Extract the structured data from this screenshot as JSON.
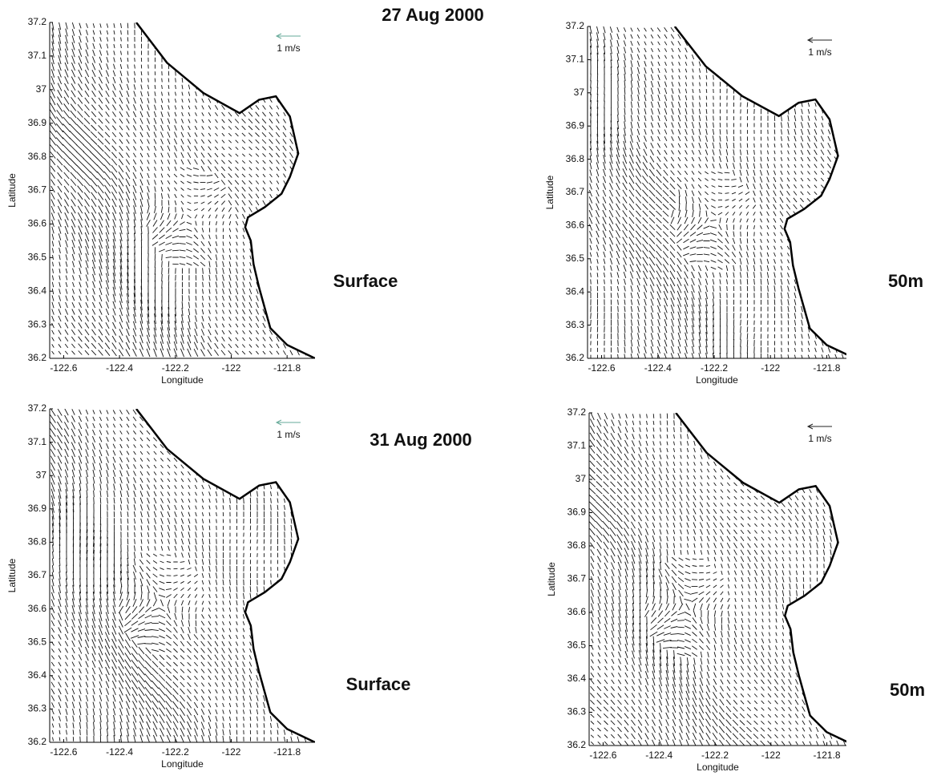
{
  "chart_data": [
    {
      "type": "quiver",
      "title": "27 Aug 2000",
      "depth_label": "Surface",
      "scale_label": "1 m/s",
      "xlabel": "Longitude",
      "ylabel": "Latitude",
      "xlim": [
        -122.65,
        -121.7
      ],
      "ylim": [
        36.2,
        37.2
      ],
      "xticks": [
        -122.6,
        -122.4,
        -122.2,
        -122,
        -121.8
      ],
      "yticks": [
        36.2,
        36.3,
        36.4,
        36.5,
        36.6,
        36.7,
        36.8,
        36.9,
        37,
        37.1,
        37.2
      ]
    },
    {
      "type": "quiver",
      "depth_label": "50m",
      "scale_label": "1 m/s",
      "xlabel": "Longitude",
      "ylabel": "Latitude",
      "xlim": [
        -122.65,
        -121.73
      ],
      "ylim": [
        36.2,
        37.2
      ],
      "xticks": [
        -122.6,
        -122.4,
        -122.2,
        -122,
        -121.8
      ],
      "yticks": [
        36.2,
        36.3,
        36.4,
        36.5,
        36.6,
        36.7,
        36.8,
        36.9,
        37,
        37.1,
        37.2
      ]
    },
    {
      "type": "quiver",
      "title": "31 Aug 2000",
      "depth_label": "Surface",
      "scale_label": "1 m/s",
      "xlabel": "Longitude",
      "ylabel": "Latitude",
      "xlim": [
        -122.65,
        -121.7
      ],
      "ylim": [
        36.2,
        37.2
      ],
      "xticks": [
        -122.6,
        -122.4,
        -122.2,
        -122,
        -121.8
      ],
      "yticks": [
        36.2,
        36.3,
        36.4,
        36.5,
        36.6,
        36.7,
        36.8,
        36.9,
        37,
        37.1,
        37.2
      ]
    },
    {
      "type": "quiver",
      "depth_label": "50m",
      "scale_label": "1 m/s",
      "xlabel": "Longitude",
      "ylabel": "Latitude",
      "xlim": [
        -122.65,
        -121.73
      ],
      "ylim": [
        36.2,
        37.2
      ],
      "xticks": [
        -122.6,
        -122.4,
        -122.2,
        -122,
        -121.8
      ],
      "yticks": [
        36.2,
        36.3,
        36.4,
        36.5,
        36.6,
        36.7,
        36.8,
        36.9,
        37,
        37.1,
        37.2
      ]
    }
  ]
}
